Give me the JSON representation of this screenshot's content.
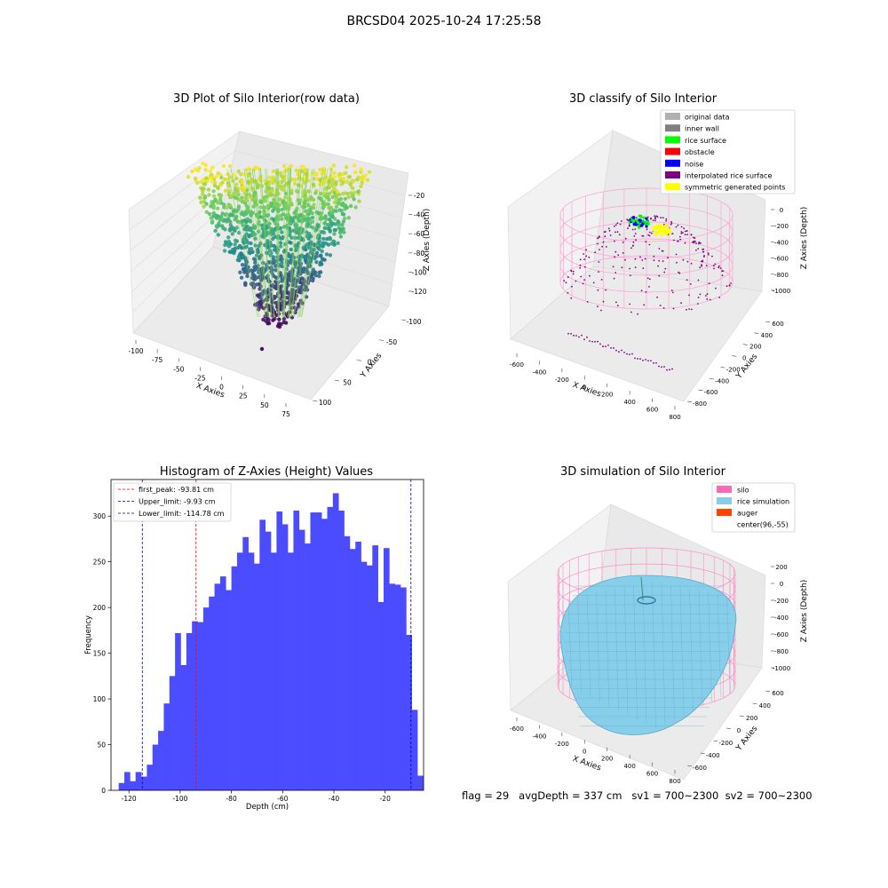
{
  "figure": {
    "title": "BRCSD04 2025-10-24 17:25:58",
    "footer": {
      "flag": "flag = 29",
      "avg_depth": "avgDepth = 337 cm",
      "sv1": "sv1 = 700~2300",
      "sv2": "sv2 = 700~2300"
    }
  },
  "colors": {
    "hist_bar": "#4b4bff",
    "first_peak": "#ff0000",
    "limits": "#0000aa",
    "silo": "#ff69b4",
    "rice_sim": "#87ceeb",
    "auger": "#ff4500",
    "original": "#b0b0b0",
    "inner_wall": "#808080",
    "rice_surface": "#00ff00",
    "obstacle": "#ff0000",
    "noise": "#0000ff",
    "interp": "#800080",
    "symmetric": "#ffff00"
  },
  "chart_data": [
    {
      "type": "scatter",
      "title": "3D Plot of Silo Interior(row data)",
      "xlabel": "X Axies",
      "ylabel": "Y Axies",
      "zlabel": "Z Axies (Depth)",
      "x_ticks": [
        "-100",
        "-75",
        "-50",
        "-25",
        "0",
        "25",
        "50",
        "75"
      ],
      "y_ticks": [
        "-100",
        "-50",
        "0",
        "50",
        "100"
      ],
      "z_ticks": [
        "-20",
        "-40",
        "-60",
        "-80",
        "-100",
        "-120"
      ],
      "xlim": [
        -100,
        80
      ],
      "ylim": [
        -100,
        100
      ],
      "zlim": [
        -130,
        -10
      ],
      "colormap": "viridis"
    },
    {
      "type": "scatter",
      "title": "3D classify of Silo Interior",
      "xlabel": "X Axies",
      "ylabel": "Y Axies",
      "zlabel": "Z Axies (Depth)",
      "x_ticks": [
        "-600",
        "-400",
        "-200",
        "0",
        "200",
        "400",
        "600",
        "800"
      ],
      "y_ticks": [
        "-800",
        "-600",
        "-400",
        "-200",
        "0",
        "200",
        "400",
        "600"
      ],
      "z_ticks": [
        "0",
        "-200",
        "-400",
        "-600",
        "-800",
        "-1000"
      ],
      "legend": [
        "original data",
        "inner wall",
        "rice surface",
        "obstacle",
        "noise",
        "interpolated rice surface",
        "symmetric generated points"
      ],
      "legend_position": "top-right"
    },
    {
      "type": "bar",
      "title": "Histogram of Z-Axies (Height) Values",
      "xlabel": "Depth (cm)",
      "ylabel": "Frequency",
      "xlim": [
        -127,
        -5
      ],
      "ylim": [
        0,
        340
      ],
      "x_ticks": [
        -120,
        -100,
        -80,
        -60,
        -40,
        -20
      ],
      "y_ticks": [
        0,
        50,
        100,
        150,
        200,
        250,
        300
      ],
      "bin_start": -124.0,
      "bin_width": 2.2,
      "values": [
        8,
        20,
        10,
        20,
        15,
        28,
        50,
        65,
        95,
        125,
        172,
        137,
        172,
        185,
        184,
        200,
        212,
        226,
        234,
        219,
        245,
        260,
        277,
        260,
        248,
        296,
        283,
        260,
        305,
        291,
        260,
        306,
        285,
        270,
        304,
        304,
        297,
        310,
        325,
        306,
        278,
        264,
        272,
        250,
        246,
        268,
        206,
        265,
        226,
        225,
        222,
        170,
        88,
        16
      ],
      "lines": [
        {
          "label": "first_peak: -93.81 cm",
          "value": -93.81,
          "color": "#ff0000"
        },
        {
          "label": "Upper_limit: -9.93 cm",
          "value": -9.93,
          "color": "#0000aa"
        },
        {
          "label": "Lower_limit: -114.78 cm",
          "value": -114.78,
          "color": "#0000aa"
        }
      ],
      "legend_position": "top-left"
    },
    {
      "type": "surface",
      "title": "3D simulation of Silo Interior",
      "xlabel": "X Axies",
      "ylabel": "Y Axies",
      "zlabel": "Z Axies (Depth)",
      "x_ticks": [
        "-600",
        "-400",
        "-200",
        "0",
        "200",
        "400",
        "600",
        "800"
      ],
      "y_ticks": [
        "-600",
        "-400",
        "-200",
        "0",
        "200",
        "400",
        "600"
      ],
      "z_ticks": [
        "200",
        "0",
        "-200",
        "-400",
        "-600",
        "-800",
        "-1000"
      ],
      "legend": [
        "silo",
        "rice simulation",
        "auger",
        "center(96,-55)"
      ],
      "legend_position": "top-right"
    }
  ]
}
